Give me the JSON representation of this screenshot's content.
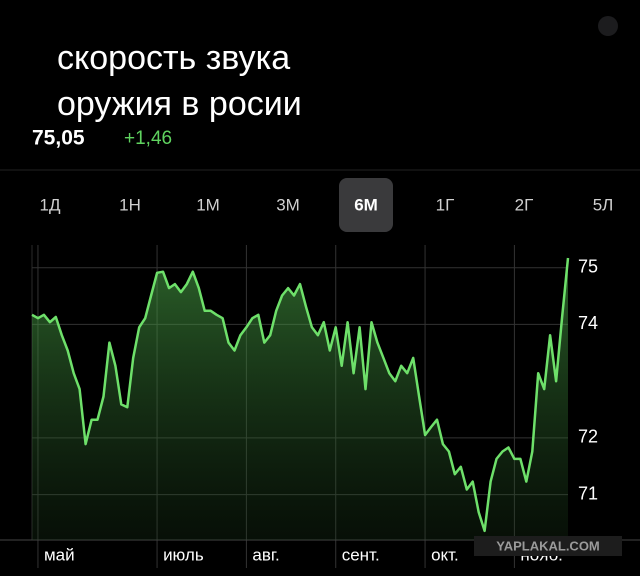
{
  "header": {
    "title_lines": [
      "скорость звука",
      "оружия в росии"
    ],
    "price": "75,05",
    "change": "+1,46"
  },
  "periods": {
    "labels": [
      "1Д",
      "1Н",
      "1М",
      "3М",
      "6М",
      "1Г",
      "2Г",
      "5Л"
    ],
    "selected": 4
  },
  "chart_data": {
    "type": "line",
    "categories": [
      null,
      "май",
      null,
      null,
      null,
      null,
      null,
      null,
      null,
      null,
      null,
      null,
      null,
      null,
      null,
      null,
      null,
      null,
      null,
      null,
      null,
      "июль",
      null,
      null,
      null,
      null,
      null,
      null,
      null,
      null,
      null,
      null,
      null,
      null,
      null,
      null,
      "авг.",
      null,
      null,
      null,
      null,
      null,
      null,
      null,
      null,
      null,
      null,
      null,
      null,
      null,
      null,
      "сент.",
      null,
      null,
      null,
      null,
      null,
      null,
      null,
      null,
      null,
      null,
      null,
      null,
      null,
      null,
      "окт.",
      null,
      null,
      null,
      null,
      null,
      null,
      null,
      null,
      null,
      null,
      null,
      null,
      null,
      null,
      "нояб.",
      null,
      null,
      null,
      null,
      null,
      null,
      null,
      null,
      null
    ],
    "values": [
      74.17,
      74.11,
      74.17,
      74.04,
      74.13,
      73.81,
      73.54,
      73.14,
      72.86,
      71.89,
      72.32,
      72.32,
      72.73,
      73.68,
      73.27,
      72.59,
      72.54,
      73.41,
      73.95,
      74.11,
      74.51,
      74.91,
      74.93,
      74.64,
      74.71,
      74.57,
      74.71,
      74.93,
      74.64,
      74.24,
      74.24,
      74.17,
      74.11,
      73.68,
      73.54,
      73.81,
      73.95,
      74.11,
      74.17,
      73.68,
      73.81,
      74.24,
      74.51,
      74.64,
      74.51,
      74.71,
      74.31,
      73.95,
      73.81,
      74.04,
      73.54,
      73.95,
      73.27,
      74.04,
      73.14,
      73.95,
      72.86,
      74.04,
      73.68,
      73.41,
      73.14,
      73.0,
      73.27,
      73.14,
      73.41,
      72.73,
      72.05,
      72.19,
      72.32,
      71.89,
      71.76,
      71.36,
      71.49,
      71.09,
      71.23,
      70.69,
      70.36,
      71.23,
      71.63,
      71.76,
      71.83,
      71.63,
      71.63,
      71.23,
      71.76,
      73.14,
      72.86,
      73.81,
      73.0,
      74.11,
      75.17
    ],
    "color": "#6ee06a",
    "ylim": [
      70.2,
      75.4
    ],
    "yticks": [
      75,
      74,
      72,
      71
    ],
    "grid": true
  },
  "watermark": "YAPLAKAL.COM"
}
